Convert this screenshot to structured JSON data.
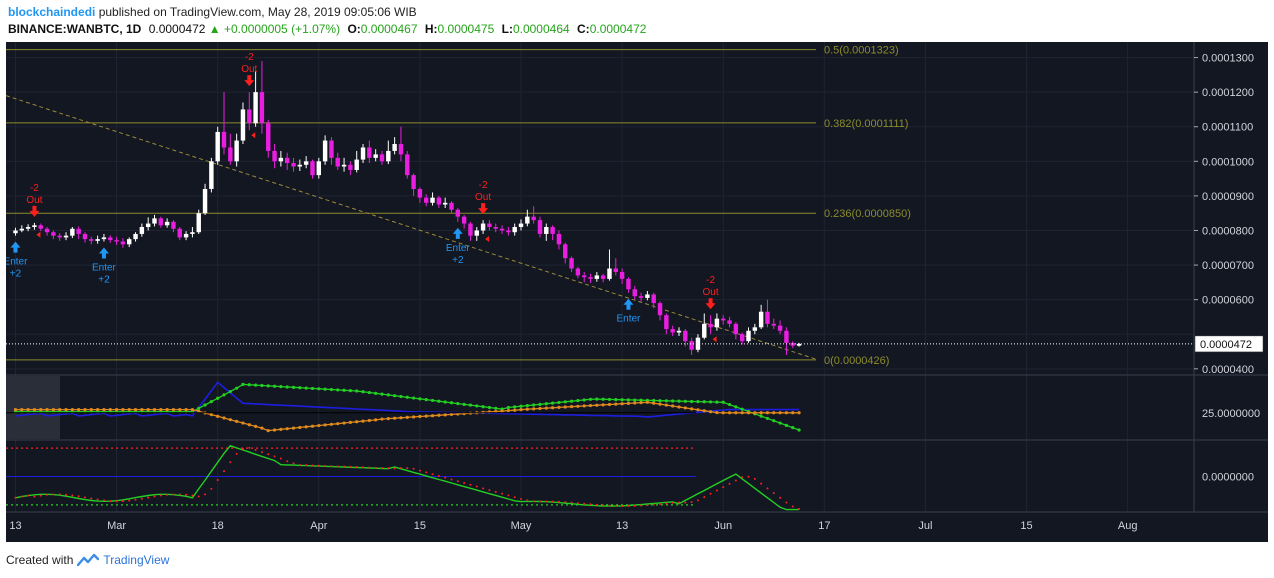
{
  "header": {
    "author": "blockchaindedi",
    "published": " published on TradingView.com, May 28, 2019 09:05:06 WIB",
    "symbol": "BINANCE:WANBTC, 1D",
    "price": "0.0000472",
    "change": "+0.0000005 (+1.07%)",
    "o_label": "O:",
    "o": "0.0000467",
    "h_label": "H:",
    "h": "0.0000475",
    "l_label": "L:",
    "l": "0.0000464",
    "c_label": "C:",
    "c": "0.0000472"
  },
  "footer": {
    "created_with": "Created with",
    "brand": "TradingView"
  },
  "colors": {
    "background": "#131722",
    "up": "#ffffff",
    "down": "#e91ee0",
    "fib": "#8c8c2c",
    "enter": "#2196f3",
    "out": "#ff1e1e",
    "adx": "#1e1ee0",
    "di_plus": "#22d022",
    "di_minus": "#e91ee0",
    "di_orange": "#e08a1e",
    "osc": "#22d022"
  },
  "chart_data": {
    "type": "candlestick",
    "price_axis": {
      "ylim": [
        3.85e-05,
        0.0001345
      ],
      "ticks": [
        "0.0001300",
        "0.0001200",
        "0.0001100",
        "0.0001000",
        "0.0000900",
        "0.0000800",
        "0.0000700",
        "0.0000600",
        "0.0000500",
        "0.0000400"
      ],
      "tick_values": [
        0.00013,
        0.00012,
        0.00011,
        0.0001,
        9e-05,
        8e-05,
        7e-05,
        6e-05,
        5e-05,
        4e-05
      ],
      "last_price_label": "0.0000472",
      "last_price": 4.72e-05
    },
    "x_axis": {
      "labels": [
        "13",
        "Mar",
        "18",
        "Apr",
        "15",
        "May",
        "13",
        "Jun",
        "17",
        "Jul",
        "15",
        "Aug"
      ],
      "label_day_index": [
        0,
        16,
        32,
        48,
        64,
        80,
        96,
        112,
        128,
        144,
        160,
        176
      ],
      "start": "2019-02-13",
      "visible_days": [
        -1.5,
        186.5
      ]
    },
    "fib_levels": [
      {
        "label": "0.5(0.0001323)",
        "value": 0.0001323
      },
      {
        "label": "0.382(0.0001111)",
        "value": 0.0001111
      },
      {
        "label": "0.236(0.0000850)",
        "value": 8.5e-05
      },
      {
        "label": "0(0.0000426)",
        "value": 4.26e-05
      }
    ],
    "candles": [
      [
        7.92e-05,
        8e-05,
        8.08e-05,
        7.85e-05
      ],
      [
        8e-05,
        8.05e-05,
        8.15e-05,
        7.95e-05
      ],
      [
        8.05e-05,
        8.1e-05,
        8.18e-05,
        7.98e-05
      ],
      [
        8.1e-05,
        8.15e-05,
        8.22e-05,
        8.02e-05
      ],
      [
        8.15e-05,
        8.05e-05,
        8.2e-05,
        7.98e-05
      ],
      [
        8.05e-05,
        7.95e-05,
        8.1e-05,
        7.85e-05
      ],
      [
        7.95e-05,
        7.85e-05,
        8e-05,
        7.75e-05
      ],
      [
        7.85e-05,
        7.8e-05,
        7.92e-05,
        7.7e-05
      ],
      [
        7.8e-05,
        7.85e-05,
        7.95e-05,
        7.72e-05
      ],
      [
        7.85e-05,
        8.05e-05,
        8.1e-05,
        7.78e-05
      ],
      [
        8.05e-05,
        7.9e-05,
        8.12e-05,
        7.75e-05
      ],
      [
        7.9e-05,
        7.75e-05,
        7.95e-05,
        7.65e-05
      ],
      [
        7.75e-05,
        7.7e-05,
        7.82e-05,
        7.6e-05
      ],
      [
        7.7e-05,
        7.75e-05,
        7.85e-05,
        7.62e-05
      ],
      [
        7.75e-05,
        7.8e-05,
        7.9e-05,
        7.68e-05
      ],
      [
        7.8e-05,
        7.72e-05,
        7.86e-05,
        7.64e-05
      ],
      [
        7.72e-05,
        7.68e-05,
        7.82e-05,
        7.58e-05
      ],
      [
        7.68e-05,
        7.6e-05,
        7.78e-05,
        7.5e-05
      ],
      [
        7.6e-05,
        7.75e-05,
        7.8e-05,
        7.52e-05
      ],
      [
        7.75e-05,
        7.9e-05,
        7.95e-05,
        7.68e-05
      ],
      [
        7.9e-05,
        8.1e-05,
        8.2e-05,
        7.82e-05
      ],
      [
        8.1e-05,
        8.2e-05,
        8.38e-05,
        8e-05
      ],
      [
        8.2e-05,
        8.35e-05,
        8.45e-05,
        8.12e-05
      ],
      [
        8.35e-05,
        8.15e-05,
        8.4e-05,
        8.08e-05
      ],
      [
        8.15e-05,
        8.25e-05,
        8.35e-05,
        8.08e-05
      ],
      [
        8.25e-05,
        8.05e-05,
        8.3e-05,
        7.95e-05
      ],
      [
        8.05e-05,
        7.8e-05,
        8.1e-05,
        7.72e-05
      ],
      [
        7.8e-05,
        7.9e-05,
        7.98e-05,
        7.72e-05
      ],
      [
        7.9e-05,
        7.95e-05,
        8.1e-05,
        7.8e-05
      ],
      [
        7.95e-05,
        8.5e-05,
        8.6e-05,
        7.9e-05
      ],
      [
        8.5e-05,
        9.2e-05,
        9.35e-05,
        8.45e-05
      ],
      [
        9.2e-05,
        0.0001,
        0.000101,
        9.1e-05
      ],
      [
        0.0001,
        0.0001085,
        0.00011,
        9.9e-05
      ],
      [
        0.0001085,
        0.000104,
        0.00012,
        0.000102
      ],
      [
        0.000104,
        0.0001,
        0.000108,
        9.9e-05
      ],
      [
        0.0001,
        0.000106,
        0.000108,
        9.85e-05
      ],
      [
        0.000106,
        0.000115,
        0.000117,
        0.000105
      ],
      [
        0.000115,
        0.000111,
        0.00012,
        0.000109
      ],
      [
        0.000111,
        0.00012,
        0.000126,
        0.00011
      ],
      [
        0.00012,
        0.000111,
        0.000129,
        0.000108
      ],
      [
        0.000111,
        0.000103,
        0.000112,
        0.000101
      ],
      [
        0.000103,
        0.0001,
        0.000105,
        9.8e-05
      ],
      [
        0.0001,
        0.000101,
        0.000103,
        9.85e-05
      ],
      [
        0.000101,
        9.95e-05,
        0.0001025,
        9.75e-05
      ],
      [
        9.95e-05,
        9.85e-05,
        0.000101,
        9.7e-05
      ],
      [
        9.85e-05,
        9.9e-05,
        0.0001005,
        9.72e-05
      ],
      [
        9.9e-05,
        0.0001,
        0.0001015,
        9.8e-05
      ],
      [
        0.0001,
        9.6e-05,
        0.0001005,
        9.5e-05
      ],
      [
        9.6e-05,
        0.0001,
        0.000101,
        9.5e-05
      ],
      [
        0.0001,
        0.000106,
        0.0001075,
        9.9e-05
      ],
      [
        0.000106,
        0.000101,
        0.000107,
        9.9e-05
      ],
      [
        0.000101,
        9.85e-05,
        0.0001025,
        9.75e-05
      ],
      [
        9.85e-05,
        9.9e-05,
        0.000101,
        9.7e-05
      ],
      [
        9.9e-05,
        9.75e-05,
        0.0001,
        9.6e-05
      ],
      [
        9.75e-05,
        0.0001005,
        0.000103,
        9.68e-05
      ],
      [
        0.0001005,
        0.000104,
        0.000105,
        9.95e-05
      ],
      [
        0.000104,
        0.000101,
        0.000106,
        9.95e-05
      ],
      [
        0.000101,
        0.000102,
        0.0001035,
        0.0001
      ],
      [
        0.000102,
        0.0001,
        0.000103,
        9.9e-05
      ],
      [
        0.0001,
        0.000103,
        0.000106,
        9.92e-05
      ],
      [
        0.000103,
        0.000105,
        0.000107,
        0.000102
      ],
      [
        0.000105,
        0.000102,
        0.00011,
        0.0001
      ],
      [
        0.000102,
        9.6e-05,
        0.000103,
        9.5e-05
      ],
      [
        9.6e-05,
        9.2e-05,
        9.65e-05,
        9e-05
      ],
      [
        9.2e-05,
        8.95e-05,
        9.25e-05,
        8.8e-05
      ],
      [
        8.95e-05,
        8.8e-05,
        9.05e-05,
        8.7e-05
      ],
      [
        8.8e-05,
        8.95e-05,
        9.1e-05,
        8.72e-05
      ],
      [
        8.95e-05,
        8.75e-05,
        9e-05,
        8.65e-05
      ],
      [
        8.75e-05,
        8.8e-05,
        8.95e-05,
        8.65e-05
      ],
      [
        8.8e-05,
        8.6e-05,
        8.85e-05,
        8.5e-05
      ],
      [
        8.6e-05,
        8.4e-05,
        8.65e-05,
        8.25e-05
      ],
      [
        8.4e-05,
        8.2e-05,
        8.45e-05,
        8.05e-05
      ],
      [
        8.2e-05,
        7.85e-05,
        8.25e-05,
        7.7e-05
      ],
      [
        7.85e-05,
        8e-05,
        8.1e-05,
        7.7e-05
      ],
      [
        8e-05,
        8.2e-05,
        8.3e-05,
        7.9e-05
      ],
      [
        8.2e-05,
        8.1e-05,
        8.3e-05,
        8e-05
      ],
      [
        8.1e-05,
        8.05e-05,
        8.2e-05,
        7.95e-05
      ],
      [
        8.05e-05,
        8e-05,
        8.15e-05,
        7.9e-05
      ],
      [
        8e-05,
        7.95e-05,
        8.1e-05,
        7.85e-05
      ],
      [
        7.95e-05,
        8.1e-05,
        8.2e-05,
        7.85e-05
      ],
      [
        8.1e-05,
        8.2e-05,
        8.32e-05,
        8e-05
      ],
      [
        8.2e-05,
        8.4e-05,
        8.6e-05,
        8.12e-05
      ],
      [
        8.4e-05,
        8.3e-05,
        8.7e-05,
        8.2e-05
      ],
      [
        8.3e-05,
        7.9e-05,
        8.4e-05,
        7.8e-05
      ],
      [
        7.9e-05,
        8.1e-05,
        8.2e-05,
        7.7e-05
      ],
      [
        8.1e-05,
        7.9e-05,
        8.15e-05,
        7.72e-05
      ],
      [
        7.9e-05,
        7.6e-05,
        8e-05,
        7.45e-05
      ],
      [
        7.6e-05,
        7.2e-05,
        7.65e-05,
        7.05e-05
      ],
      [
        7.2e-05,
        6.9e-05,
        7.25e-05,
        6.8e-05
      ],
      [
        6.9e-05,
        6.7e-05,
        6.95e-05,
        6.62e-05
      ],
      [
        6.7e-05,
        6.65e-05,
        6.8e-05,
        6.5e-05
      ],
      [
        6.65e-05,
        6.6e-05,
        6.75e-05,
        6.48e-05
      ],
      [
        6.6e-05,
        6.7e-05,
        6.8e-05,
        6.52e-05
      ],
      [
        6.7e-05,
        6.6e-05,
        6.75e-05,
        6.5e-05
      ],
      [
        6.6e-05,
        6.9e-05,
        7.45e-05,
        6.55e-05
      ],
      [
        6.9e-05,
        6.8e-05,
        7.2e-05,
        6.7e-05
      ],
      [
        6.8e-05,
        6.6e-05,
        6.9e-05,
        6.45e-05
      ],
      [
        6.6e-05,
        6.3e-05,
        6.65e-05,
        6.2e-05
      ],
      [
        6.3e-05,
        6.1e-05,
        6.4e-05,
        6e-05
      ],
      [
        6.1e-05,
        6.05e-05,
        6.2e-05,
        5.95e-05
      ],
      [
        6.05e-05,
        6.15e-05,
        6.25e-05,
        5.98e-05
      ],
      [
        6.15e-05,
        5.9e-05,
        6.2e-05,
        5.75e-05
      ],
      [
        5.9e-05,
        5.55e-05,
        5.95e-05,
        5.4e-05
      ],
      [
        5.55e-05,
        5.15e-05,
        5.6e-05,
        5e-05
      ],
      [
        5.15e-05,
        5.05e-05,
        5.25e-05,
        4.95e-05
      ],
      [
        5.05e-05,
        5.1e-05,
        5.2e-05,
        4.95e-05
      ],
      [
        5.1e-05,
        4.8e-05,
        5.15e-05,
        4.65e-05
      ],
      [
        4.8e-05,
        4.55e-05,
        4.9e-05,
        4.4e-05
      ],
      [
        4.55e-05,
        4.9e-05,
        5e-05,
        4.48e-05
      ],
      [
        4.9e-05,
        5.3e-05,
        5.6e-05,
        4.85e-05
      ],
      [
        5.3e-05,
        5.2e-05,
        5.55e-05,
        5e-05
      ],
      [
        5.2e-05,
        5.45e-05,
        5.6e-05,
        5.1e-05
      ],
      [
        5.45e-05,
        5.4e-05,
        5.55e-05,
        5.28e-05
      ],
      [
        5.4e-05,
        5.3e-05,
        5.5e-05,
        5.2e-05
      ],
      [
        5.3e-05,
        5e-05,
        5.35e-05,
        4.85e-05
      ],
      [
        5e-05,
        4.8e-05,
        5.05e-05,
        4.7e-05
      ],
      [
        4.8e-05,
        5.1e-05,
        5.2e-05,
        4.75e-05
      ],
      [
        5.1e-05,
        5.2e-05,
        5.3e-05,
        5e-05
      ],
      [
        5.2e-05,
        5.65e-05,
        5.85e-05,
        5.15e-05
      ],
      [
        5.65e-05,
        5.3e-05,
        6e-05,
        5.2e-05
      ],
      [
        5.3e-05,
        5.25e-05,
        5.45e-05,
        5.15e-05
      ],
      [
        5.25e-05,
        5.1e-05,
        5.4e-05,
        5e-05
      ],
      [
        5.1e-05,
        4.75e-05,
        5.2e-05,
        4.4e-05
      ],
      [
        4.75e-05,
        4.67e-05,
        4.8e-05,
        4.6e-05
      ],
      [
        4.67e-05,
        4.72e-05,
        4.75e-05,
        4.64e-05
      ]
    ],
    "signals": [
      {
        "type": "enter",
        "day": 0,
        "label": "Enter",
        "qty": "+2"
      },
      {
        "type": "out",
        "day": 3,
        "top": "-2",
        "label": "Out"
      },
      {
        "type": "enter",
        "day": 14,
        "label": "Enter",
        "qty": "+2"
      },
      {
        "type": "out",
        "day": 37,
        "top": "-2",
        "label": "Out"
      },
      {
        "type": "enter",
        "day": 70,
        "label": "Enter",
        "qty": "+2"
      },
      {
        "type": "out",
        "day": 74,
        "top": "-2",
        "label": "Out"
      },
      {
        "type": "enter",
        "day": 97,
        "label": "Enter",
        "qty": ""
      },
      {
        "type": "out",
        "day": 110,
        "top": "-2",
        "label": "Out"
      }
    ],
    "sub1_axis": {
      "tick_label": "25.0000000",
      "tick_value": 25,
      "ylim": [
        0,
        60
      ]
    },
    "sub2_axis": {
      "tick_label": "0.0000000",
      "tick_value": 0,
      "ylim": [
        -3,
        3
      ]
    }
  }
}
